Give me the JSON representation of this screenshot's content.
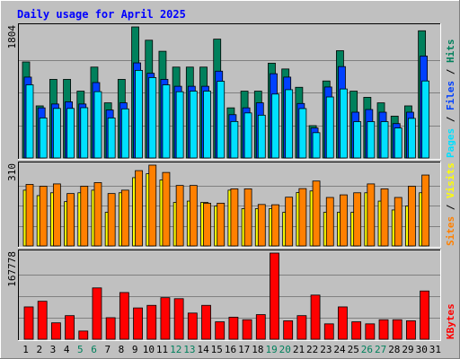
{
  "title": "Daily usage for April 2025",
  "colors": {
    "background": "#c0c0c0",
    "title": "#0000ff",
    "hits": "#00805c",
    "files": "#0040ff",
    "pages": "#00e0ff",
    "visits": "#ffff00",
    "sites": "#ff8000",
    "kbytes": "#ff0000",
    "weekend_day": "#00805c",
    "weekday": "#000000",
    "separator_slash": "#000000"
  },
  "chart_data": [
    {
      "type": "bar",
      "panel": "hits-files-pages",
      "y_max_label": "1804",
      "ylim": [
        0,
        1804
      ],
      "legend": [
        "Pages",
        "/",
        "Files",
        "/",
        "Hits"
      ],
      "categories": [
        "1",
        "2",
        "3",
        "4",
        "5",
        "6",
        "7",
        "8",
        "9",
        "10",
        "11",
        "12",
        "13",
        "14",
        "15",
        "16",
        "17",
        "18",
        "19",
        "20",
        "21",
        "22",
        "23",
        "24",
        "25",
        "26",
        "27",
        "28",
        "29",
        "30",
        "31"
      ],
      "series": [
        {
          "name": "Hits",
          "values": [
            1322,
            717,
            1082,
            1082,
            920,
            1251,
            759,
            1082,
            1804,
            1621,
            1469,
            1251,
            1251,
            1251,
            1636,
            690,
            920,
            920,
            1305,
            1225,
            973,
            445,
            1060,
            1477,
            920,
            835,
            759,
            576,
            717,
            1751,
            0
          ]
        },
        {
          "name": "Files",
          "values": [
            1113,
            690,
            743,
            773,
            743,
            1038,
            660,
            759,
            1309,
            1166,
            1082,
            987,
            987,
            987,
            1195,
            596,
            690,
            759,
            1160,
            1113,
            750,
            413,
            977,
            1258,
            630,
            667,
            630,
            473,
            630,
            1403,
            0
          ]
        },
        {
          "name": "Pages",
          "values": [
            1007,
            551,
            682,
            682,
            692,
            913,
            551,
            676,
            1206,
            1107,
            1007,
            912,
            920,
            920,
            1056,
            502,
            620,
            589,
            880,
            940,
            680,
            348,
            840,
            950,
            500,
            500,
            500,
            413,
            545,
            1060,
            0
          ]
        }
      ],
      "xlabel": "",
      "ylabel": ""
    },
    {
      "type": "bar",
      "panel": "visits-sites",
      "y_max_label": "310",
      "ylim": [
        0,
        310
      ],
      "legend": [
        "Sites",
        "/",
        "Visits"
      ],
      "categories": [
        "1",
        "2",
        "3",
        "4",
        "5",
        "6",
        "7",
        "8",
        "9",
        "10",
        "11",
        "12",
        "13",
        "14",
        "15",
        "16",
        "17",
        "18",
        "19",
        "20",
        "21",
        "22",
        "23",
        "24",
        "25",
        "26",
        "27",
        "28",
        "29",
        "30",
        "31"
      ],
      "series": [
        {
          "name": "Visits",
          "values": [
            214,
            193,
            204,
            170,
            204,
            214,
            129,
            204,
            262,
            277,
            253,
            167,
            172,
            167,
            153,
            214,
            143,
            143,
            143,
            129,
            205,
            211,
            129,
            129,
            129,
            204,
            172,
            138,
            153,
            204,
            0
          ]
        },
        {
          "name": "Sites",
          "values": [
            236,
            229,
            238,
            201,
            229,
            243,
            201,
            214,
            289,
            310,
            282,
            232,
            232,
            164,
            164,
            219,
            219,
            159,
            158,
            187,
            220,
            249,
            186,
            196,
            204,
            238,
            219,
            186,
            229,
            272,
            0
          ]
        }
      ],
      "xlabel": "",
      "ylabel": ""
    },
    {
      "type": "bar",
      "panel": "kbytes",
      "y_max_label": "167778",
      "ylim": [
        0,
        167778
      ],
      "legend": [
        "KBytes"
      ],
      "categories": [
        "1",
        "2",
        "3",
        "4",
        "5",
        "6",
        "7",
        "8",
        "9",
        "10",
        "11",
        "12",
        "13",
        "14",
        "15",
        "16",
        "17",
        "18",
        "19",
        "20",
        "21",
        "22",
        "23",
        "24",
        "25",
        "26",
        "27",
        "28",
        "29",
        "30",
        "31"
      ],
      "series": [
        {
          "name": "KBytes",
          "values": [
            63000,
            74000,
            32000,
            46000,
            16000,
            100000,
            42000,
            91000,
            61000,
            66000,
            81000,
            79000,
            51000,
            66000,
            34000,
            43000,
            38000,
            48000,
            167778,
            36000,
            46000,
            86000,
            30000,
            63000,
            34000,
            30000,
            38000,
            38000,
            36000,
            94000,
            0
          ]
        }
      ],
      "xlabel": "",
      "ylabel": ""
    }
  ],
  "weekend_days": [
    5,
    6,
    12,
    13,
    19,
    20,
    26,
    27
  ]
}
